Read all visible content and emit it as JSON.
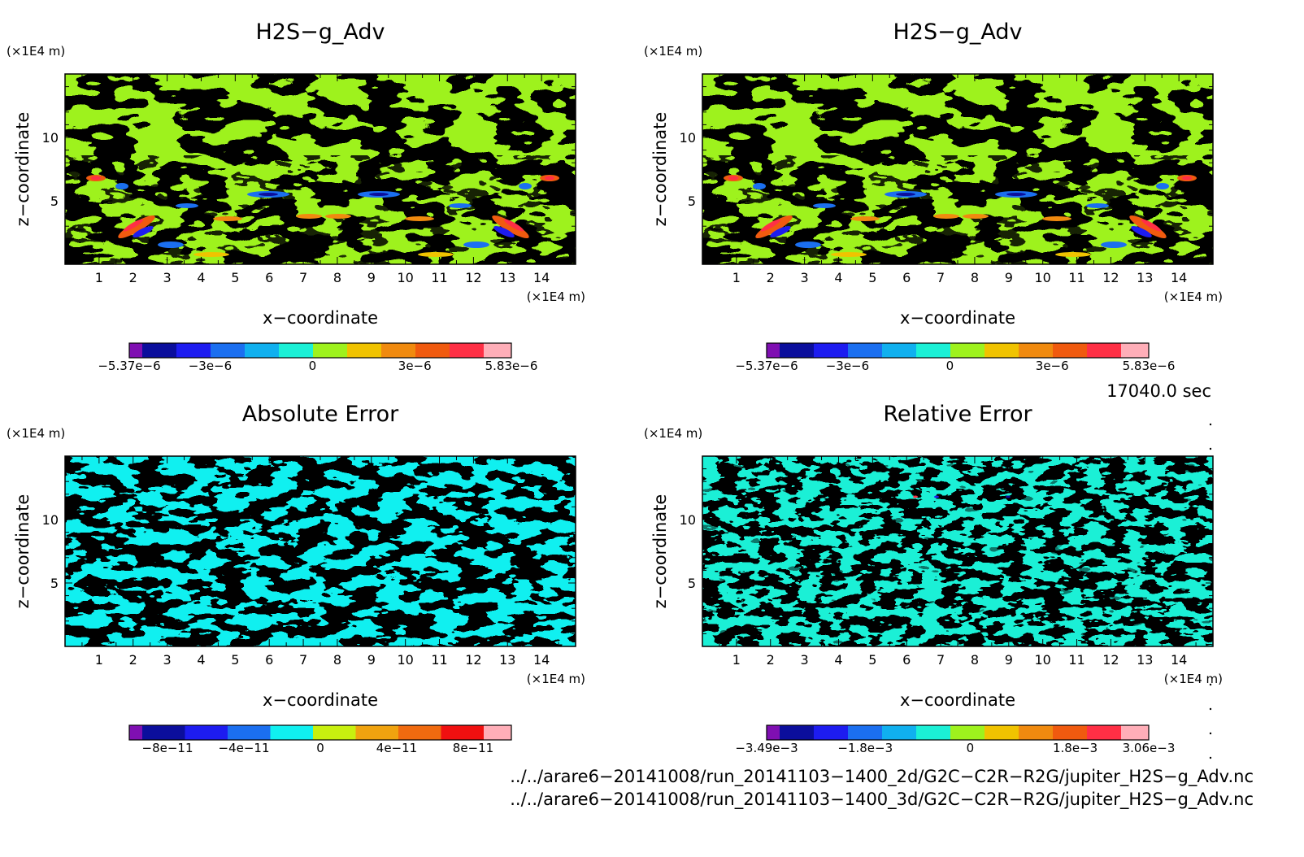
{
  "chart_data": [
    {
      "type": "heatmap",
      "title": "H2S−g_Adv",
      "xlabel": "x−coordinate",
      "ylabel": "z−coordinate",
      "x_unit": "(×1E4 m)",
      "y_unit": "(×1E4 m)",
      "xlim": [
        0,
        15
      ],
      "ylim": [
        0,
        15
      ],
      "xticks": [
        "1",
        "2",
        "3",
        "4",
        "5",
        "6",
        "7",
        "8",
        "9",
        "10",
        "11",
        "12",
        "13",
        "14"
      ],
      "yticks": [
        "5",
        "10"
      ],
      "colorbar": {
        "colors": [
          "#7f0fb2",
          "#0b0e9c",
          "#1d1cf0",
          "#1b6ff0",
          "#10b0ef",
          "#1bf0d6",
          "#9ef21d",
          "#f0c300",
          "#f08a0f",
          "#f05a0f",
          "#ff2f45",
          "#ffaeb8"
        ],
        "tick_values": [
          -5.37e-06,
          -3e-06,
          0,
          3e-06,
          5.83e-06
        ],
        "tick_labels": [
          "−5.37e−6",
          "−3e−6",
          "0",
          "3e−6",
          "5.83e−6"
        ],
        "range": [
          -5.37e-06,
          5.83e-06
        ]
      }
    },
    {
      "type": "heatmap",
      "title": "H2S−g_Adv",
      "xlabel": "x−coordinate",
      "ylabel": "z−coordinate",
      "x_unit": "(×1E4 m)",
      "y_unit": "(×1E4 m)",
      "xlim": [
        0,
        15
      ],
      "ylim": [
        0,
        15
      ],
      "xticks": [
        "1",
        "2",
        "3",
        "4",
        "5",
        "6",
        "7",
        "8",
        "9",
        "10",
        "11",
        "12",
        "13",
        "14"
      ],
      "yticks": [
        "5",
        "10"
      ],
      "colorbar": {
        "colors": [
          "#7f0fb2",
          "#0b0e9c",
          "#1d1cf0",
          "#1b6ff0",
          "#10b0ef",
          "#1bf0d6",
          "#9ef21d",
          "#f0c300",
          "#f08a0f",
          "#f05a0f",
          "#ff2f45",
          "#ffaeb8"
        ],
        "tick_values": [
          -5.37e-06,
          -3e-06,
          0,
          3e-06,
          5.83e-06
        ],
        "tick_labels": [
          "−5.37e−6",
          "−3e−6",
          "0",
          "3e−6",
          "5.83e−6"
        ],
        "range": [
          -5.37e-06,
          5.83e-06
        ]
      }
    },
    {
      "type": "heatmap",
      "title": "Absolute Error",
      "xlabel": "x−coordinate",
      "ylabel": "z−coordinate",
      "x_unit": "(×1E4 m)",
      "y_unit": "(×1E4 m)",
      "xlim": [
        0,
        15
      ],
      "ylim": [
        0,
        15
      ],
      "xticks": [
        "1",
        "2",
        "3",
        "4",
        "5",
        "6",
        "7",
        "8",
        "9",
        "10",
        "11",
        "12",
        "13",
        "14"
      ],
      "yticks": [
        "5",
        "10"
      ],
      "colorbar": {
        "colors": [
          "#7f0fb2",
          "#0b0e9c",
          "#1d1cf0",
          "#1b6ff0",
          "#10f0f0",
          "#c8f00f",
          "#f0a30f",
          "#f06a0f",
          "#f01010",
          "#ffaeb8"
        ],
        "tick_values": [
          -8e-11,
          -4e-11,
          0,
          4e-11,
          8e-11
        ],
        "tick_labels": [
          "−8e−11",
          "−4e−11",
          "0",
          "4e−11",
          "8e−11"
        ],
        "range": [
          -1e-10,
          1e-10
        ]
      }
    },
    {
      "type": "heatmap",
      "title": "Relative Error",
      "xlabel": "x−coordinate",
      "ylabel": "z−coordinate",
      "x_unit": "(×1E4 m)",
      "y_unit": "(×1E4 m)",
      "xlim": [
        0,
        15
      ],
      "ylim": [
        0,
        15
      ],
      "xticks": [
        "1",
        "2",
        "3",
        "4",
        "5",
        "6",
        "7",
        "8",
        "9",
        "10",
        "11",
        "12",
        "13",
        "14"
      ],
      "yticks": [
        "5",
        "10"
      ],
      "colorbar": {
        "colors": [
          "#7f0fb2",
          "#0b0e9c",
          "#1d1cf0",
          "#1b6ff0",
          "#10b0ef",
          "#1bf0d6",
          "#9ef21d",
          "#f0c300",
          "#f08a0f",
          "#f05a0f",
          "#ff2f45",
          "#ffaeb8"
        ],
        "tick_values": [
          -0.00349,
          -0.0018,
          0,
          0.0018,
          0.00306
        ],
        "tick_labels": [
          "−3.49e−3",
          "−1.8e−3",
          "0",
          "1.8e−3",
          "3.06e−3"
        ],
        "range": [
          -0.00349,
          0.00306
        ]
      }
    }
  ],
  "time_label": "17040.0 sec",
  "footer": {
    "file_2d": "../../arare6−20141008/run_20141103−1400_2d/G2C−C2R−R2G/jupiter_H2S−g_Adv.nc",
    "file_3d": "../../arare6−20141008/run_20141103−1400_3d/G2C−C2R−R2G/jupiter_H2S−g_Adv.nc"
  }
}
